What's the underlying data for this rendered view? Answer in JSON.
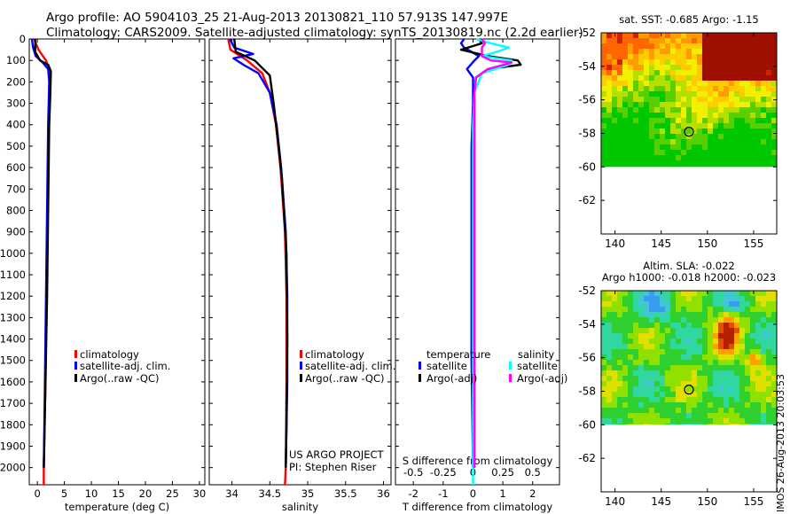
{
  "header": {
    "line1": "Argo profile: AO 5904103_25 21-Aug-2013 20130821_110 57.913S 147.997E",
    "line2": "Climatology: CARS2009. Satellite-adjusted climatology: synTS_20130819.nc (2.2d earlier)"
  },
  "colors": {
    "climatology": "#ff0000",
    "satellite": "#0000ff",
    "argo": "#000000",
    "sal_satellite": "#00ffff",
    "sal_argo": "#ff00ff"
  },
  "legend_profiles": {
    "items": [
      {
        "label": "climatology",
        "color": "#ff0000"
      },
      {
        "label": "satellite-adj. clim.",
        "color": "#0000ff"
      },
      {
        "label": "Argo(..raw -QC)",
        "color": "#000000"
      }
    ]
  },
  "legend_diff": {
    "temperature_title": "temperature",
    "salinity_title": "salinity",
    "temperature_items": [
      {
        "label": "satellite",
        "color": "#0000ff"
      },
      {
        "label": "Argo(-adj)",
        "color": "#000000"
      }
    ],
    "salinity_items": [
      {
        "label": "satellite",
        "color": "#00ffff"
      },
      {
        "label": "Argo(-adj)",
        "color": "#ff00ff"
      }
    ]
  },
  "credits": {
    "project": "US ARGO PROJECT",
    "pi": "PI: Stephen Riser"
  },
  "side_label": "IMOS 26-Aug-2013 20:03:53",
  "chart_data": [
    {
      "type": "line",
      "id": "temperature",
      "xlabel": "temperature (deg C)",
      "ylabel": "",
      "xlim": [
        -1.5,
        31
      ],
      "ylim": [
        2080,
        0
      ],
      "xticks": [
        0,
        5,
        10,
        15,
        20,
        25,
        30
      ],
      "xtick_labels": [
        "0",
        "5",
        "10",
        "15",
        "20",
        "25",
        "30"
      ],
      "yticks": [
        0,
        100,
        200,
        300,
        400,
        500,
        600,
        700,
        800,
        900,
        1000,
        1100,
        1200,
        1300,
        1400,
        1500,
        1600,
        1700,
        1800,
        1900,
        2000
      ],
      "y_reversed": true,
      "series": [
        {
          "name": "climatology",
          "color": "#ff0000",
          "points": [
            [
              -0.6,
              0
            ],
            [
              0.2,
              50
            ],
            [
              1.6,
              100
            ],
            [
              2.3,
              150
            ],
            [
              2.3,
              200
            ],
            [
              2.1,
              400
            ],
            [
              1.9,
              800
            ],
            [
              1.7,
              1200
            ],
            [
              1.5,
              1600
            ],
            [
              1.2,
              2000
            ],
            [
              1.2,
              2080
            ]
          ]
        },
        {
          "name": "satellite-adj. clim.",
          "color": "#0000ff",
          "points": [
            [
              -1.0,
              0
            ],
            [
              -0.8,
              40
            ],
            [
              -0.3,
              80
            ],
            [
              1.0,
              110
            ],
            [
              2.0,
              140
            ],
            [
              2.2,
              200
            ],
            [
              2.0,
              400
            ],
            [
              1.8,
              800
            ],
            [
              1.6,
              1200
            ],
            [
              1.4,
              1600
            ],
            [
              1.2,
              2000
            ]
          ]
        },
        {
          "name": "Argo(..raw -QC)",
          "color": "#000000",
          "points": [
            [
              -0.4,
              0
            ],
            [
              -0.4,
              60
            ],
            [
              0.5,
              100
            ],
            [
              2.0,
              120
            ],
            [
              2.5,
              150
            ],
            [
              2.4,
              250
            ],
            [
              2.2,
              400
            ],
            [
              2.0,
              800
            ],
            [
              1.8,
              1200
            ],
            [
              1.5,
              1600
            ],
            [
              1.2,
              2000
            ]
          ]
        }
      ]
    },
    {
      "type": "line",
      "id": "salinity",
      "xlabel": "salinity",
      "xlim": [
        33.7,
        36.1
      ],
      "ylim": [
        2080,
        0
      ],
      "xticks": [
        34,
        34.5,
        35,
        35.5,
        36
      ],
      "xtick_labels": [
        "34",
        "34.5",
        "35",
        "35.5",
        "36"
      ],
      "y_reversed": true,
      "series": [
        {
          "name": "climatology",
          "color": "#ff0000",
          "points": [
            [
              33.95,
              0
            ],
            [
              33.98,
              50
            ],
            [
              34.2,
              100
            ],
            [
              34.4,
              160
            ],
            [
              34.5,
              250
            ],
            [
              34.58,
              400
            ],
            [
              34.64,
              600
            ],
            [
              34.7,
              900
            ],
            [
              34.72,
              1200
            ],
            [
              34.72,
              1600
            ],
            [
              34.71,
              2000
            ],
            [
              34.7,
              2080
            ]
          ]
        },
        {
          "name": "satellite-adj. clim.",
          "color": "#0000ff",
          "points": [
            [
              33.97,
              0
            ],
            [
              34.03,
              40
            ],
            [
              34.28,
              70
            ],
            [
              34.02,
              90
            ],
            [
              34.15,
              120
            ],
            [
              34.35,
              160
            ],
            [
              34.5,
              250
            ],
            [
              34.59,
              400
            ],
            [
              34.65,
              600
            ],
            [
              34.71,
              900
            ],
            [
              34.73,
              1200
            ],
            [
              34.73,
              1600
            ],
            [
              34.71,
              2000
            ]
          ]
        },
        {
          "name": "Argo(..raw -QC)",
          "color": "#000000",
          "points": [
            [
              34.03,
              0
            ],
            [
              34.05,
              60
            ],
            [
              34.3,
              100
            ],
            [
              34.5,
              170
            ],
            [
              34.55,
              300
            ],
            [
              34.6,
              450
            ],
            [
              34.66,
              650
            ],
            [
              34.72,
              1000
            ],
            [
              34.73,
              1400
            ],
            [
              34.72,
              1800
            ],
            [
              34.71,
              2000
            ]
          ]
        }
      ]
    },
    {
      "type": "line",
      "id": "difference",
      "xlabel": "T difference from climatology",
      "xlabel_top": "S difference from climatology",
      "xlim": [
        -2.6,
        2.9
      ],
      "ylim": [
        2080,
        0
      ],
      "xticks": [
        -2,
        -1,
        0,
        1,
        2
      ],
      "xtick_labels": [
        "-2",
        "-1",
        "0",
        "1",
        "2"
      ],
      "top_ticks": [
        -0.5,
        -0.25,
        0,
        0.25,
        0.5
      ],
      "top_tick_labels": [
        "-0.5",
        "-0.25",
        "0",
        "0.25",
        "0.5"
      ],
      "y_reversed": true,
      "series": [
        {
          "name": "temperature satellite",
          "color": "#0000ff",
          "points": [
            [
              -0.3,
              0
            ],
            [
              -0.4,
              20
            ],
            [
              -0.3,
              40
            ],
            [
              0.2,
              80
            ],
            [
              0.05,
              100
            ],
            [
              -0.2,
              140
            ],
            [
              0.0,
              180
            ],
            [
              0.0,
              300
            ],
            [
              -0.05,
              500
            ],
            [
              -0.05,
              1000
            ],
            [
              -0.05,
              1500
            ],
            [
              0.0,
              2000
            ]
          ]
        },
        {
          "name": "temperature Argo(-adj)",
          "color": "#000000",
          "points": [
            [
              0.2,
              0
            ],
            [
              0.3,
              20
            ],
            [
              -0.4,
              50
            ],
            [
              0.5,
              80
            ],
            [
              1.5,
              100
            ],
            [
              1.6,
              120
            ],
            [
              0.5,
              140
            ],
            [
              0.1,
              180
            ],
            [
              0.05,
              250
            ],
            [
              0.05,
              400
            ],
            [
              0.05,
              1000
            ],
            [
              0.05,
              1500
            ],
            [
              0.05,
              2000
            ]
          ]
        },
        {
          "name": "salinity satellite",
          "color": "#00ffff",
          "points": [
            [
              0.1,
              0
            ],
            [
              0.6,
              20
            ],
            [
              1.2,
              40
            ],
            [
              0.8,
              60
            ],
            [
              0.3,
              80
            ],
            [
              1.3,
              100
            ],
            [
              1.2,
              120
            ],
            [
              0.3,
              160
            ],
            [
              0.05,
              250
            ],
            [
              0.0,
              400
            ],
            [
              0.0,
              1000
            ],
            [
              0.0,
              1500
            ],
            [
              0.0,
              2000
            ],
            [
              0.0,
              2080
            ]
          ]
        },
        {
          "name": "salinity Argo(-adj)",
          "color": "#ff00ff",
          "points": [
            [
              0.3,
              0
            ],
            [
              0.4,
              20
            ],
            [
              0.3,
              40
            ],
            [
              0.3,
              60
            ],
            [
              0.3,
              80
            ],
            [
              0.6,
              100
            ],
            [
              1.3,
              110
            ],
            [
              0.5,
              140
            ],
            [
              0.1,
              180
            ],
            [
              0.05,
              250
            ],
            [
              0.05,
              400
            ],
            [
              0.05,
              1000
            ],
            [
              0.05,
              2000
            ]
          ]
        }
      ]
    },
    {
      "type": "heatmap",
      "id": "sst_map",
      "title": "sat. SST: -0.685 Argo: -1.15",
      "xlim": [
        138.5,
        157.5
      ],
      "ylim": [
        -64,
        -52
      ],
      "xticks": [
        140,
        145,
        150,
        155
      ],
      "xtick_labels": [
        "140",
        "145",
        "150",
        "155"
      ],
      "yticks": [
        -52,
        -54,
        -56,
        -58,
        -60,
        -62
      ],
      "ytick_labels": [
        "-52",
        "-54",
        "-56",
        "-58",
        "-60",
        "-62"
      ],
      "data_ylim": [
        -60,
        -52
      ],
      "marker": {
        "lon": 148.0,
        "lat": -57.9
      },
      "palette": [
        "#00c800",
        "#58d000",
        "#b4e000",
        "#f0f000",
        "#ffcc00",
        "#ff9c00",
        "#ff6600",
        "#d22000",
        "#a01000"
      ]
    },
    {
      "type": "heatmap",
      "id": "sla_map",
      "title": "Altim. SLA: -0.022",
      "subtitle": "Argo h1000: -0.018 h2000: -0.023",
      "xlim": [
        138.5,
        157.5
      ],
      "ylim": [
        -64,
        -52
      ],
      "xticks": [
        140,
        145,
        150,
        155
      ],
      "xtick_labels": [
        "140",
        "145",
        "150",
        "155"
      ],
      "yticks": [
        -52,
        -54,
        -56,
        -58,
        -60,
        -62
      ],
      "ytick_labels": [
        "-52",
        "-54",
        "-56",
        "-58",
        "-60",
        "-62"
      ],
      "data_ylim": [
        -60,
        -52
      ],
      "marker": {
        "lon": 148.0,
        "lat": -57.9
      },
      "palette": [
        "#3a9cf0",
        "#40c8d0",
        "#30d8a0",
        "#30d030",
        "#90e000",
        "#e0e000",
        "#ffa000",
        "#e05000",
        "#b42000"
      ]
    }
  ]
}
